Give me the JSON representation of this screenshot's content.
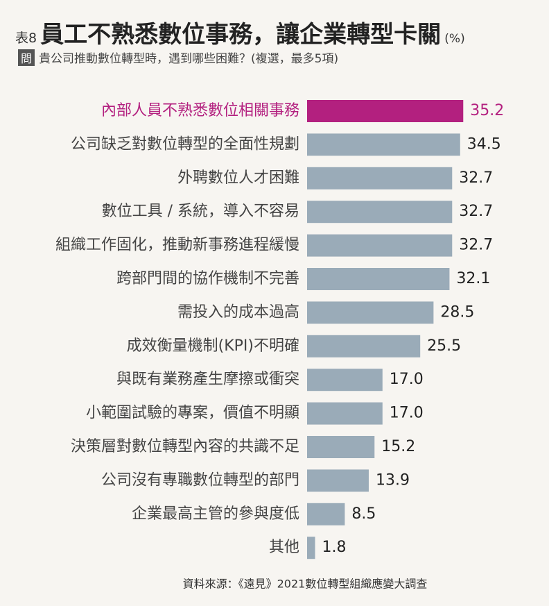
{
  "chart_data": {
    "type": "bar",
    "orientation": "horizontal",
    "table_label": "表8",
    "title": "員工不熟悉數位事務，讓企業轉型卡關",
    "unit": "(%)",
    "question_tag": "問",
    "subtitle": "貴公司推動數位轉型時，遇到哪些困難？(複選，最多5項)",
    "categories": [
      "內部人員不熟悉數位相關事務",
      "公司缺乏對數位轉型的全面性規劃",
      "外聘數位人才困難",
      "數位工具 / 系統，導入不容易",
      "組織工作固化，推動新事務進程緩慢",
      "跨部門間的協作機制不完善",
      "需投入的成本過高",
      "成效衡量機制(KPI)不明確",
      "與既有業務產生摩擦或衝突",
      "小範圍試驗的專案，價值不明顯",
      "決策層對數位轉型內容的共識不足",
      "公司沒有專職數位轉型的部門",
      "企業最高主管的參與度低",
      "其他"
    ],
    "values": [
      35.2,
      34.5,
      32.7,
      32.7,
      32.7,
      32.1,
      28.5,
      25.5,
      17.0,
      17.0,
      15.2,
      13.9,
      8.5,
      1.8
    ],
    "value_labels": [
      "35.2",
      "34.5",
      "32.7",
      "32.7",
      "32.7",
      "32.1",
      "28.5",
      "25.5",
      "17.0",
      "17.0",
      "15.2",
      "13.9",
      "8.5",
      "1.8"
    ],
    "color": "#9aabb8",
    "highlight_color": "#b3207f",
    "highlight_index": 0,
    "source": "資料來源：《遠見》2021數位轉型組織應變大調查"
  }
}
